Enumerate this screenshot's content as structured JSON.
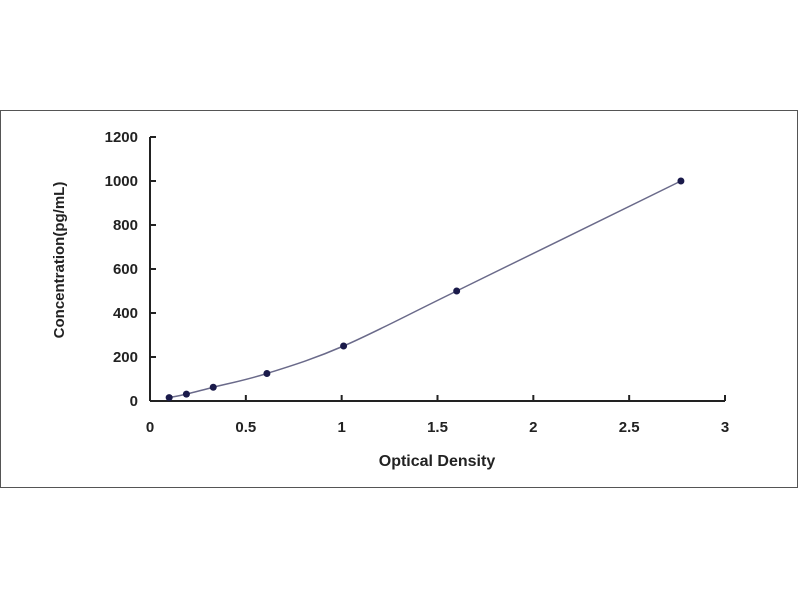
{
  "chart_data": {
    "type": "scatter",
    "title": "",
    "xlabel": "Optical Density",
    "ylabel": "Concentration(pg/mL)",
    "xlim": [
      0,
      3
    ],
    "ylim": [
      0,
      1200
    ],
    "xticks": [
      "0",
      "0.5",
      "1",
      "1.5",
      "2",
      "2.5",
      "3"
    ],
    "yticks": [
      "0",
      "200",
      "400",
      "600",
      "800",
      "1000",
      "1200"
    ],
    "grid": false,
    "fit_line": true,
    "colors": {
      "points": "#1a1a4a",
      "line": "#6a6a8a"
    },
    "points": [
      {
        "x": 0.1,
        "y": 15.6
      },
      {
        "x": 0.19,
        "y": 31.25
      },
      {
        "x": 0.33,
        "y": 62.5
      },
      {
        "x": 0.61,
        "y": 125
      },
      {
        "x": 1.01,
        "y": 250
      },
      {
        "x": 1.6,
        "y": 500
      },
      {
        "x": 2.77,
        "y": 1000
      }
    ]
  }
}
